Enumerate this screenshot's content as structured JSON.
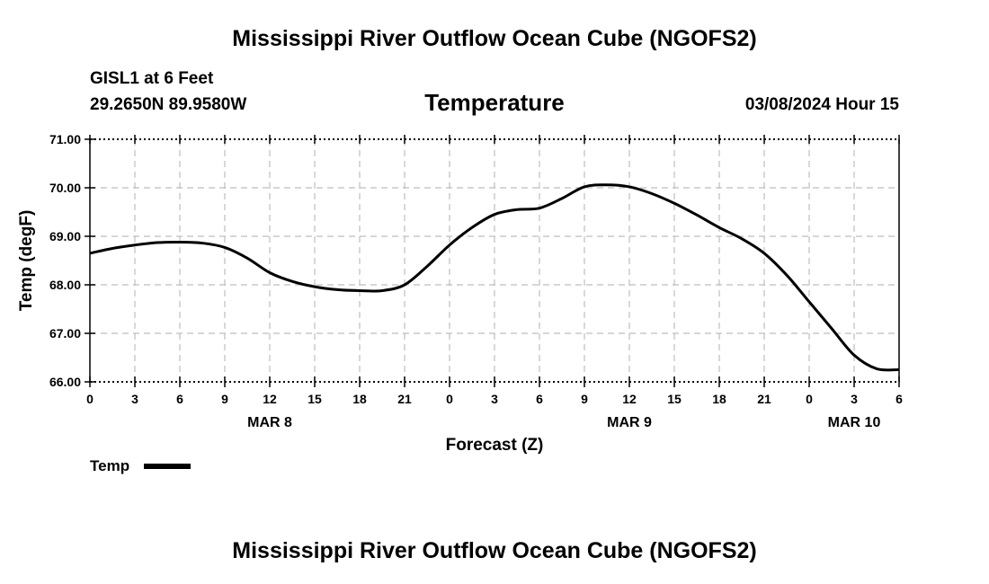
{
  "header": {
    "title_top": "Mississippi River Outflow Ocean Cube (NGOFS2)",
    "station_line": "GISL1 at 6 Feet",
    "coords_line": "29.2650N  89.9580W",
    "subtitle": "Temperature",
    "timestamp": "03/08/2024 Hour 15",
    "title_bottom": "Mississippi River Outflow Ocean Cube (NGOFS2)"
  },
  "legend": {
    "label": "Temp"
  },
  "chart_data": {
    "type": "line",
    "title": "Temperature",
    "xlabel": "Forecast (Z)",
    "ylabel": "Temp (degF)",
    "xlim": [
      0,
      54
    ],
    "ylim": [
      66,
      71
    ],
    "grid": true,
    "y_ticks": [
      "66.00",
      "67.00",
      "68.00",
      "69.00",
      "70.00",
      "71.00"
    ],
    "x_ticks": [
      "0",
      "3",
      "6",
      "9",
      "12",
      "15",
      "18",
      "21",
      "0",
      "3",
      "6",
      "9",
      "12",
      "15",
      "18",
      "21",
      "0",
      "3",
      "6"
    ],
    "day_labels": [
      {
        "hour": 12,
        "label": "MAR 8"
      },
      {
        "hour": 36,
        "label": "MAR 9"
      },
      {
        "hour": 51,
        "label": "MAR 10"
      }
    ],
    "series": [
      {
        "name": "Temp",
        "x": [
          0,
          1.5,
          3,
          4.5,
          6,
          7.5,
          9,
          10.5,
          12,
          13.5,
          15,
          16.5,
          18,
          19.5,
          21,
          22.5,
          24,
          25.5,
          27,
          28.5,
          30,
          31.5,
          33,
          34.5,
          36,
          37.5,
          39,
          40.5,
          42,
          43.5,
          45,
          46.5,
          48,
          49.5,
          51,
          52.5,
          54
        ],
        "values": [
          68.65,
          68.75,
          68.82,
          68.87,
          68.88,
          68.86,
          68.77,
          68.55,
          68.25,
          68.07,
          67.96,
          67.9,
          67.88,
          67.88,
          68.0,
          68.38,
          68.82,
          69.18,
          69.45,
          69.55,
          69.58,
          69.78,
          70.02,
          70.06,
          70.02,
          69.88,
          69.68,
          69.44,
          69.18,
          68.95,
          68.65,
          68.2,
          67.65,
          67.1,
          66.55,
          66.27,
          66.25
        ]
      }
    ]
  }
}
